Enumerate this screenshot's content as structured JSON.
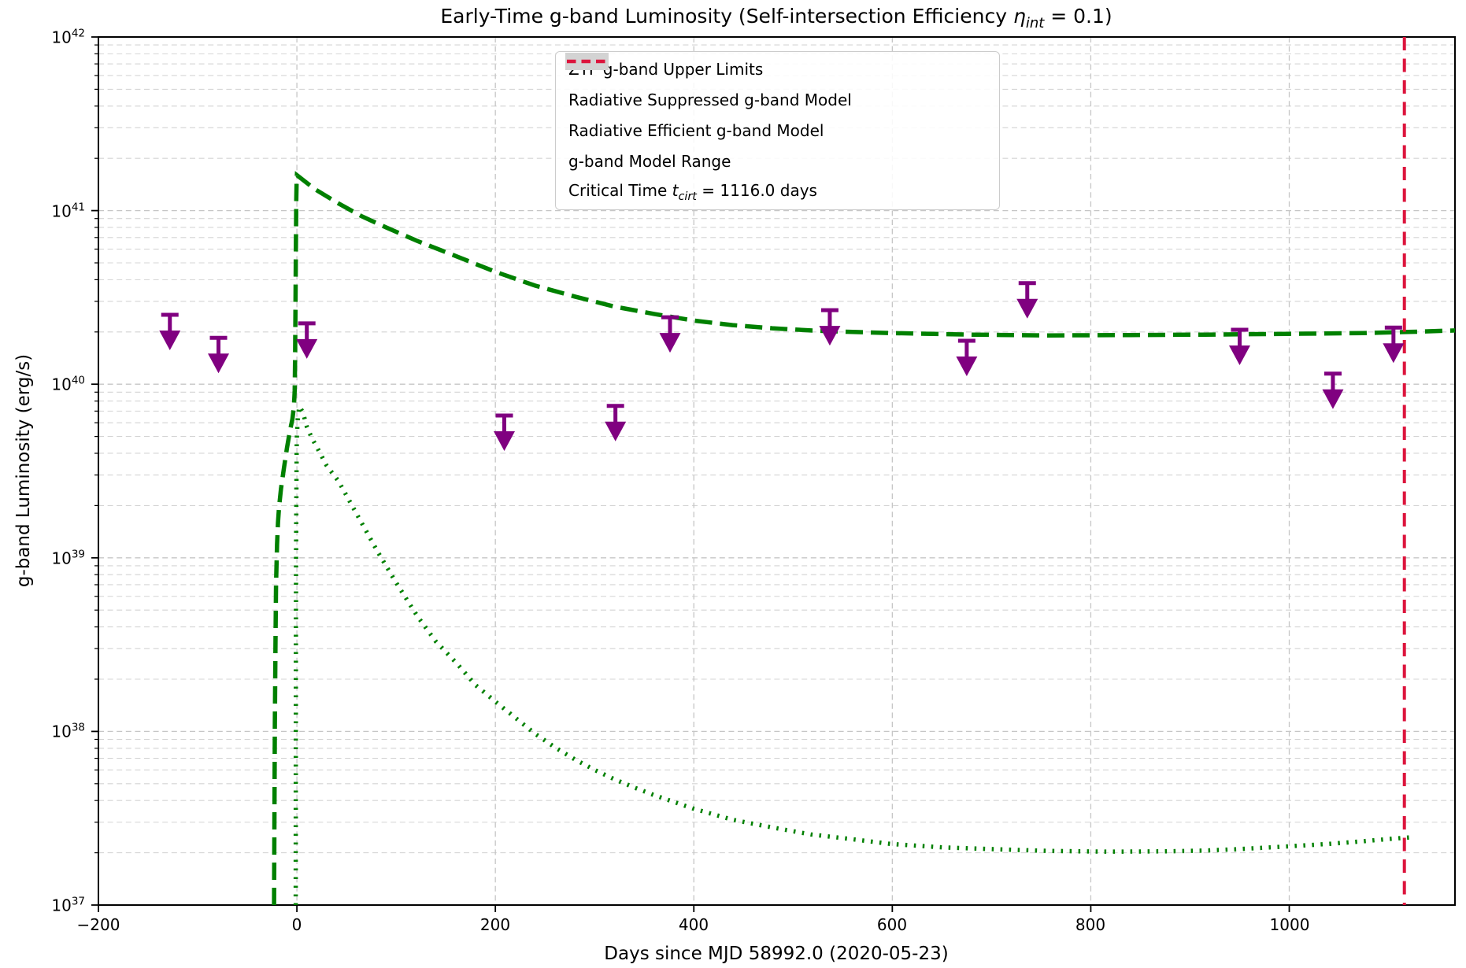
{
  "chart_data": {
    "type": "line",
    "title": {
      "before": "Early-Time g-band Luminosity (Self-intersection Efficiency ",
      "eta": "η",
      "eta_sub": "int",
      "after": " = 0.1)"
    },
    "xlabel": "Days since MJD 58992.0 (2020-05-23)",
    "ylabel": "g-band Luminosity (erg/s)",
    "xlim": [
      -200,
      1167
    ],
    "ylim_exp": [
      37,
      42
    ],
    "x_ticks": [
      {
        "v": -200,
        "label": "−200"
      },
      {
        "v": 0,
        "label": "0"
      },
      {
        "v": 200,
        "label": "200"
      },
      {
        "v": 400,
        "label": "400"
      },
      {
        "v": 600,
        "label": "600"
      },
      {
        "v": 800,
        "label": "800"
      },
      {
        "v": 1000,
        "label": "1000"
      }
    ],
    "y_ticks": {
      "base": "10",
      "exponents": [
        42,
        41,
        40,
        39,
        38,
        37
      ]
    },
    "grid": {
      "on": true,
      "style": "dashed",
      "major_color": "#c6c6c6",
      "minor_color": "#d4d4d4"
    },
    "colors": {
      "upper_limits": "#800080",
      "model_green": "#008000",
      "model_range": "#d3d3d3",
      "critical_time": "#DC143C",
      "spine": "#000000",
      "background": "#ffffff"
    },
    "legend": {
      "position": "upper center-left",
      "items": [
        {
          "swatch": "line-solid",
          "color": "#800080",
          "parts": [
            {
              "t": "ZTF g-band Upper Limits"
            }
          ]
        },
        {
          "swatch": "line-dashed",
          "color": "#008000",
          "parts": [
            {
              "t": "Radiative Suppressed g-band Model"
            }
          ]
        },
        {
          "swatch": "line-dotted",
          "color": "#008000",
          "parts": [
            {
              "t": "Radiative Efficient g-band Model"
            }
          ]
        },
        {
          "swatch": "patch",
          "color": "#d3d3d3",
          "parts": [
            {
              "t": "g-band Model Range"
            }
          ]
        },
        {
          "swatch": "line-dashed-short",
          "color": "#DC143C",
          "parts": [
            {
              "t": "Critical Time "
            },
            {
              "t": "t",
              "i": true
            },
            {
              "t": "cirt",
              "i": true,
              "sub": true
            },
            {
              "t": " = 1116.0 days"
            }
          ]
        }
      ]
    },
    "critical_time_days": 1116.0,
    "series": [
      {
        "name": "ZTF g-band Upper Limits",
        "kind": "upper-limit-arrows",
        "arrow_drop_dex": 0.2,
        "points": [
          [
            -128,
            2.51e+40
          ],
          [
            -79,
            1.85e+40
          ],
          [
            10,
            2.24e+40
          ],
          [
            209,
            6.6e+39
          ],
          [
            321,
            7.5e+39
          ],
          [
            376,
            2.43e+40
          ],
          [
            537,
            2.67e+40
          ],
          [
            675,
            1.78e+40
          ],
          [
            736,
            3.82e+40
          ],
          [
            950,
            2.06e+40
          ],
          [
            1044,
            1.15e+40
          ],
          [
            1105,
            2.12e+40
          ]
        ]
      },
      {
        "name": "Radiative Suppressed g-band Model",
        "kind": "dashed-curve",
        "points": [
          [
            -23,
            1e+37
          ],
          [
            -22.6,
            3.5e+37
          ],
          [
            -22.2,
            1.1e+38
          ],
          [
            -21.6,
            3.2e+38
          ],
          [
            -21,
            7e+38
          ],
          [
            -20,
            1.2e+39
          ],
          [
            -19,
            1.6e+39
          ],
          [
            -18,
            1.95e+39
          ],
          [
            -16,
            2.5e+39
          ],
          [
            -13,
            3.3e+39
          ],
          [
            -10,
            4.3e+39
          ],
          [
            -7,
            5.4e+39
          ],
          [
            -4.5,
            6.3e+39
          ],
          [
            -3,
            7.4e+39
          ],
          [
            -2.2,
            9.2e+39
          ],
          [
            -1.8,
            1.4e+40
          ],
          [
            -1.4,
            2.8e+40
          ],
          [
            -1.0,
            6e+40
          ],
          [
            -0.6,
            1.15e+41
          ],
          [
            -0.2,
            1.52e+41
          ],
          [
            0,
            1.6e+41
          ],
          [
            18,
            1.33e+41
          ],
          [
            42,
            1.1e+41
          ],
          [
            65,
            9.3e+40
          ],
          [
            90,
            8e+40
          ],
          [
            121,
            6.7e+40
          ],
          [
            161,
            5.45e+40
          ],
          [
            201,
            4.42e+40
          ],
          [
            240,
            3.7e+40
          ],
          [
            280,
            3.2e+40
          ],
          [
            320,
            2.8e+40
          ],
          [
            360,
            2.54e+40
          ],
          [
            399,
            2.33e+40
          ],
          [
            439,
            2.19e+40
          ],
          [
            479,
            2.1e+40
          ],
          [
            518,
            2.04e+40
          ],
          [
            560,
            2e+40
          ],
          [
            598,
            1.97e+40
          ],
          [
            680,
            1.93e+40
          ],
          [
            756,
            1.91e+40
          ],
          [
            840,
            1.92e+40
          ],
          [
            915,
            1.93e+40
          ],
          [
            1000,
            1.95e+40
          ],
          [
            1074,
            1.97e+40
          ],
          [
            1120,
            2e+40
          ],
          [
            1167,
            2.04e+40
          ]
        ]
      },
      {
        "name": "Radiative Efficient g-band Model",
        "kind": "dotted-curve",
        "points": [
          [
            -1.2,
            1e+37
          ],
          [
            -1.1,
            6e+37
          ],
          [
            -1.0,
            3e+38
          ],
          [
            -0.8,
            1.2e+39
          ],
          [
            -0.5,
            2.6e+39
          ],
          [
            -0.2,
            4.2e+39
          ],
          [
            0,
            5e+39
          ],
          [
            1,
            6.5e+39
          ],
          [
            2.5,
            7.45e+39
          ],
          [
            6,
            6.9e+39
          ],
          [
            10,
            5.7e+39
          ],
          [
            15,
            4.9e+39
          ],
          [
            20,
            4.35e+39
          ],
          [
            30,
            3.4e+39
          ],
          [
            42,
            2.76e+39
          ],
          [
            60,
            1.8e+39
          ],
          [
            82,
            1.07e+39
          ],
          [
            100,
            7.2e+38
          ],
          [
            121,
            4.65e+38
          ],
          [
            140,
            3.3e+38
          ],
          [
            161,
            2.47e+38
          ],
          [
            180,
            1.85e+38
          ],
          [
            201,
            1.47e+38
          ],
          [
            220,
            1.2e+38
          ],
          [
            240,
            9.7e+37
          ],
          [
            260,
            8.1e+37
          ],
          [
            280,
            6.9e+37
          ],
          [
            300,
            6e+37
          ],
          [
            320,
            5.3e+37
          ],
          [
            340,
            4.75e+37
          ],
          [
            360,
            4.3e+37
          ],
          [
            399,
            3.6e+37
          ],
          [
            439,
            3.1e+37
          ],
          [
            479,
            2.8e+37
          ],
          [
            518,
            2.55e+37
          ],
          [
            558,
            2.4e+37
          ],
          [
            598,
            2.25e+37
          ],
          [
            650,
            2.15e+37
          ],
          [
            700,
            2.1e+37
          ],
          [
            756,
            2.05e+37
          ],
          [
            820,
            2.03e+37
          ],
          [
            880,
            2.04e+37
          ],
          [
            915,
            2.06e+37
          ],
          [
            950,
            2.1e+37
          ],
          [
            994,
            2.17e+37
          ],
          [
            1040,
            2.25e+37
          ],
          [
            1074,
            2.33e+37
          ],
          [
            1100,
            2.4e+37
          ],
          [
            1121,
            2.45e+37
          ]
        ]
      }
    ]
  }
}
